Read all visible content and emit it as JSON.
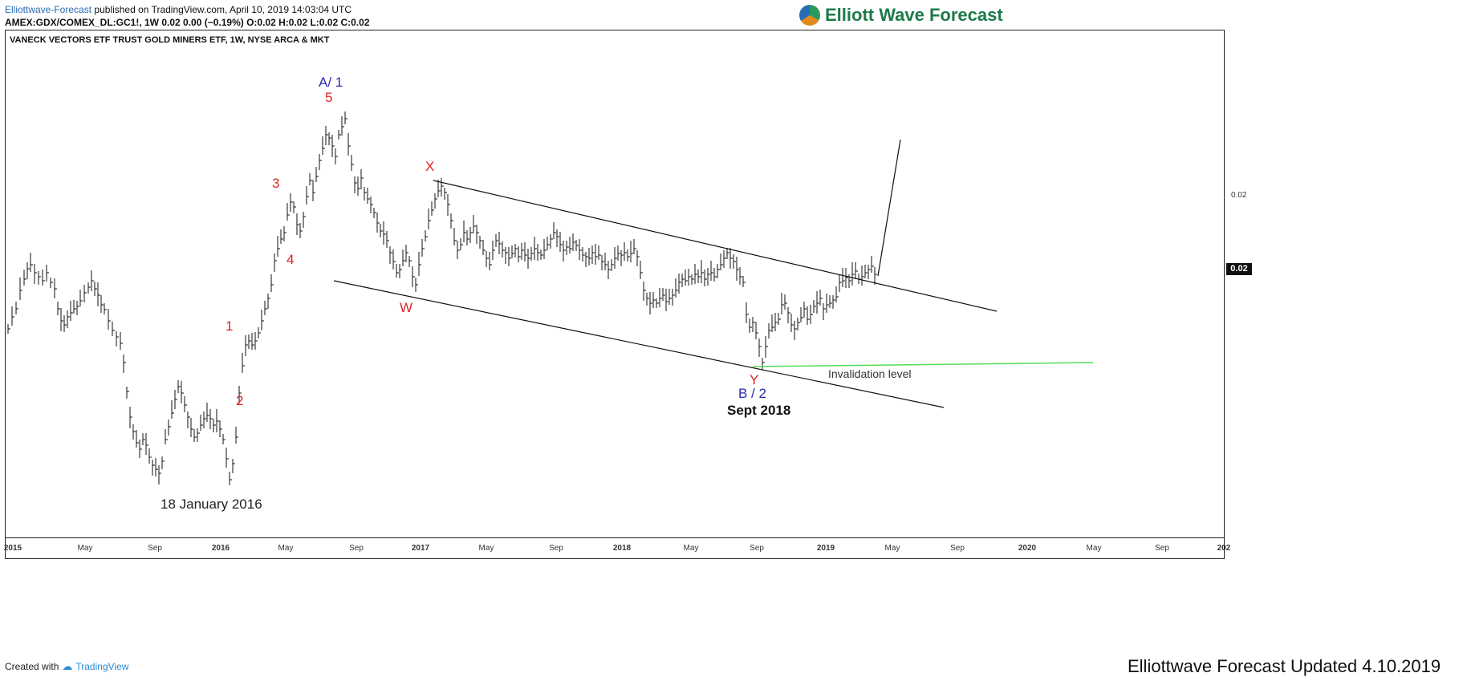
{
  "header": {
    "author": "Elliottwave-Forecast",
    "published_text": "published on TradingView.com, April 10, 2019 14:03:04 UTC",
    "symbol_line": "AMEX:GDX/COMEX_DL:GC1!, 1W  0.02 0.00 (−0.19%) O:0.02 H:0.02 L:0.02 C:0.02"
  },
  "logo": {
    "text": "Elliott Wave Forecast"
  },
  "footer": {
    "created_with": "Created with",
    "brand": "TradingView",
    "updated": "Elliottwave Forecast Updated 4.10.2019"
  },
  "chart_data": {
    "type": "ohlc-weekly",
    "title": "VANECK VECTORS ETF TRUST GOLD MINERS ETF, 1W, NYSE ARCA & MKT",
    "x_ticks": [
      "2015",
      "May",
      "Sep",
      "2016",
      "May",
      "Sep",
      "2017",
      "May",
      "Sep",
      "2018",
      "May",
      "Sep",
      "2019",
      "May",
      "Sep",
      "2020",
      "May",
      "Sep",
      "202"
    ],
    "y_ticks": [
      "0.02"
    ],
    "last_price_label": "0.02",
    "wave_labels": [
      {
        "text": "A/ 1",
        "color": "#2a2ab0"
      },
      {
        "text": "5",
        "color": "#e02020"
      },
      {
        "text": "3",
        "color": "#e02020"
      },
      {
        "text": "4",
        "color": "#e02020"
      },
      {
        "text": "1",
        "color": "#e02020"
      },
      {
        "text": "2",
        "color": "#e02020"
      },
      {
        "text": "X",
        "color": "#e02020"
      },
      {
        "text": "W",
        "color": "#e02020"
      },
      {
        "text": "Y",
        "color": "#e02020"
      },
      {
        "text": "B / 2",
        "color": "#2a2ab0"
      }
    ],
    "annotations": [
      "18 January 2016",
      "Sept 2018",
      "Invalidation level"
    ],
    "price_path": [
      [
        0,
        410
      ],
      [
        5,
        395
      ],
      [
        10,
        385
      ],
      [
        15,
        362
      ],
      [
        20,
        348
      ],
      [
        24,
        335
      ],
      [
        28,
        330
      ],
      [
        33,
        340
      ],
      [
        38,
        345
      ],
      [
        43,
        350
      ],
      [
        48,
        340
      ],
      [
        53,
        352
      ],
      [
        58,
        360
      ],
      [
        62,
        385
      ],
      [
        66,
        400
      ],
      [
        70,
        405
      ],
      [
        74,
        395
      ],
      [
        78,
        390
      ],
      [
        82,
        385
      ],
      [
        86,
        382
      ],
      [
        90,
        375
      ],
      [
        95,
        365
      ],
      [
        100,
        358
      ],
      [
        104,
        350
      ],
      [
        108,
        360
      ],
      [
        112,
        368
      ],
      [
        116,
        380
      ],
      [
        120,
        386
      ],
      [
        125,
        400
      ],
      [
        130,
        412
      ],
      [
        135,
        420
      ],
      [
        140,
        428
      ],
      [
        144,
        452
      ],
      [
        148,
        488
      ],
      [
        152,
        520
      ],
      [
        156,
        538
      ],
      [
        160,
        552
      ],
      [
        164,
        560
      ],
      [
        168,
        548
      ],
      [
        172,
        555
      ],
      [
        176,
        570
      ],
      [
        180,
        580
      ],
      [
        184,
        585
      ],
      [
        188,
        590
      ],
      [
        192,
        575
      ],
      [
        196,
        548
      ],
      [
        200,
        532
      ],
      [
        204,
        515
      ],
      [
        208,
        498
      ],
      [
        212,
        482
      ],
      [
        216,
        490
      ],
      [
        220,
        505
      ],
      [
        224,
        520
      ],
      [
        228,
        535
      ],
      [
        232,
        545
      ],
      [
        236,
        540
      ],
      [
        240,
        530
      ],
      [
        244,
        522
      ],
      [
        248,
        518
      ],
      [
        252,
        522
      ],
      [
        256,
        530
      ],
      [
        260,
        525
      ],
      [
        264,
        535
      ],
      [
        268,
        548
      ],
      [
        272,
        572
      ],
      [
        276,
        598
      ],
      [
        280,
        578
      ],
      [
        284,
        545
      ],
      [
        288,
        490
      ],
      [
        292,
        456
      ],
      [
        296,
        430
      ],
      [
        300,
        425
      ],
      [
        304,
        430
      ],
      [
        308,
        425
      ],
      [
        312,
        415
      ],
      [
        316,
        400
      ],
      [
        320,
        385
      ],
      [
        324,
        372
      ],
      [
        328,
        355
      ],
      [
        332,
        325
      ],
      [
        336,
        310
      ],
      [
        340,
        298
      ],
      [
        344,
        290
      ],
      [
        348,
        268
      ],
      [
        352,
        252
      ],
      [
        356,
        258
      ],
      [
        360,
        280
      ],
      [
        364,
        288
      ],
      [
        368,
        270
      ],
      [
        372,
        245
      ],
      [
        376,
        225
      ],
      [
        380,
        240
      ],
      [
        384,
        220
      ],
      [
        388,
        200
      ],
      [
        392,
        185
      ],
      [
        396,
        168
      ],
      [
        400,
        172
      ],
      [
        404,
        182
      ],
      [
        408,
        195
      ],
      [
        412,
        168
      ],
      [
        416,
        158
      ],
      [
        420,
        148
      ],
      [
        424,
        182
      ],
      [
        428,
        205
      ],
      [
        432,
        228
      ],
      [
        436,
        235
      ],
      [
        440,
        222
      ],
      [
        444,
        240
      ],
      [
        448,
        248
      ],
      [
        452,
        255
      ],
      [
        456,
        265
      ],
      [
        460,
        278
      ],
      [
        464,
        288
      ],
      [
        468,
        292
      ],
      [
        472,
        300
      ],
      [
        476,
        315
      ],
      [
        480,
        326
      ],
      [
        484,
        340
      ],
      [
        488,
        336
      ],
      [
        492,
        325
      ],
      [
        496,
        315
      ],
      [
        500,
        325
      ],
      [
        504,
        345
      ],
      [
        508,
        355
      ],
      [
        512,
        330
      ],
      [
        516,
        310
      ],
      [
        520,
        295
      ],
      [
        524,
        275
      ],
      [
        528,
        262
      ],
      [
        532,
        248
      ],
      [
        536,
        238
      ],
      [
        540,
        232
      ],
      [
        544,
        240
      ],
      [
        548,
        255
      ],
      [
        552,
        275
      ],
      [
        556,
        300
      ],
      [
        560,
        312
      ],
      [
        564,
        305
      ],
      [
        568,
        290
      ],
      [
        572,
        298
      ],
      [
        576,
        290
      ],
      [
        580,
        282
      ],
      [
        584,
        290
      ],
      [
        588,
        300
      ],
      [
        592,
        312
      ],
      [
        596,
        322
      ],
      [
        600,
        330
      ],
      [
        604,
        312
      ],
      [
        608,
        300
      ],
      [
        612,
        304
      ],
      [
        616,
        312
      ],
      [
        620,
        315
      ],
      [
        624,
        322
      ],
      [
        628,
        316
      ],
      [
        632,
        310
      ],
      [
        636,
        320
      ],
      [
        640,
        312
      ],
      [
        644,
        318
      ],
      [
        648,
        322
      ],
      [
        652,
        316
      ],
      [
        656,
        310
      ],
      [
        660,
        315
      ],
      [
        664,
        318
      ],
      [
        668,
        312
      ],
      [
        672,
        305
      ],
      [
        676,
        298
      ],
      [
        680,
        290
      ],
      [
        684,
        295
      ],
      [
        688,
        305
      ],
      [
        692,
        312
      ],
      [
        696,
        308
      ],
      [
        700,
        310
      ],
      [
        704,
        302
      ],
      [
        708,
        306
      ],
      [
        712,
        312
      ],
      [
        716,
        318
      ],
      [
        720,
        320
      ],
      [
        724,
        322
      ],
      [
        728,
        315
      ],
      [
        732,
        320
      ],
      [
        736,
        318
      ],
      [
        740,
        326
      ],
      [
        744,
        330
      ],
      [
        748,
        336
      ],
      [
        752,
        330
      ],
      [
        756,
        322
      ],
      [
        760,
        316
      ],
      [
        764,
        318
      ],
      [
        768,
        315
      ],
      [
        772,
        320
      ],
      [
        776,
        316
      ],
      [
        780,
        310
      ],
      [
        784,
        320
      ],
      [
        788,
        340
      ],
      [
        792,
        362
      ],
      [
        796,
        372
      ],
      [
        800,
        378
      ],
      [
        804,
        374
      ],
      [
        808,
        378
      ],
      [
        812,
        372
      ],
      [
        816,
        368
      ],
      [
        820,
        376
      ],
      [
        824,
        372
      ],
      [
        828,
        368
      ],
      [
        832,
        362
      ],
      [
        836,
        352
      ],
      [
        840,
        348
      ],
      [
        844,
        350
      ],
      [
        848,
        345
      ],
      [
        852,
        348
      ],
      [
        856,
        342
      ],
      [
        860,
        345
      ],
      [
        864,
        340
      ],
      [
        868,
        348
      ],
      [
        872,
        342
      ],
      [
        876,
        340
      ],
      [
        880,
        345
      ],
      [
        884,
        336
      ],
      [
        888,
        330
      ],
      [
        892,
        322
      ],
      [
        896,
        315
      ],
      [
        900,
        322
      ],
      [
        904,
        326
      ],
      [
        908,
        336
      ],
      [
        912,
        345
      ],
      [
        916,
        352
      ],
      [
        920,
        392
      ],
      [
        924,
        408
      ],
      [
        928,
        402
      ],
      [
        932,
        415
      ],
      [
        936,
        432
      ],
      [
        940,
        452
      ],
      [
        944,
        432
      ],
      [
        948,
        412
      ],
      [
        952,
        408
      ],
      [
        956,
        402
      ],
      [
        960,
        398
      ],
      [
        964,
        380
      ],
      [
        968,
        378
      ],
      [
        972,
        390
      ],
      [
        976,
        405
      ],
      [
        980,
        410
      ],
      [
        984,
        402
      ],
      [
        988,
        396
      ],
      [
        992,
        385
      ],
      [
        996,
        398
      ],
      [
        1000,
        392
      ],
      [
        1004,
        382
      ],
      [
        1008,
        378
      ],
      [
        1012,
        372
      ],
      [
        1016,
        385
      ],
      [
        1020,
        380
      ],
      [
        1024,
        378
      ],
      [
        1028,
        374
      ],
      [
        1032,
        370
      ],
      [
        1036,
        352
      ],
      [
        1040,
        350
      ],
      [
        1044,
        346
      ],
      [
        1048,
        350
      ],
      [
        1052,
        342
      ],
      [
        1056,
        338
      ],
      [
        1060,
        348
      ],
      [
        1064,
        345
      ],
      [
        1068,
        340
      ],
      [
        1072,
        336
      ],
      [
        1076,
        332
      ],
      [
        1080,
        342
      ],
      [
        1084,
        336
      ]
    ]
  }
}
